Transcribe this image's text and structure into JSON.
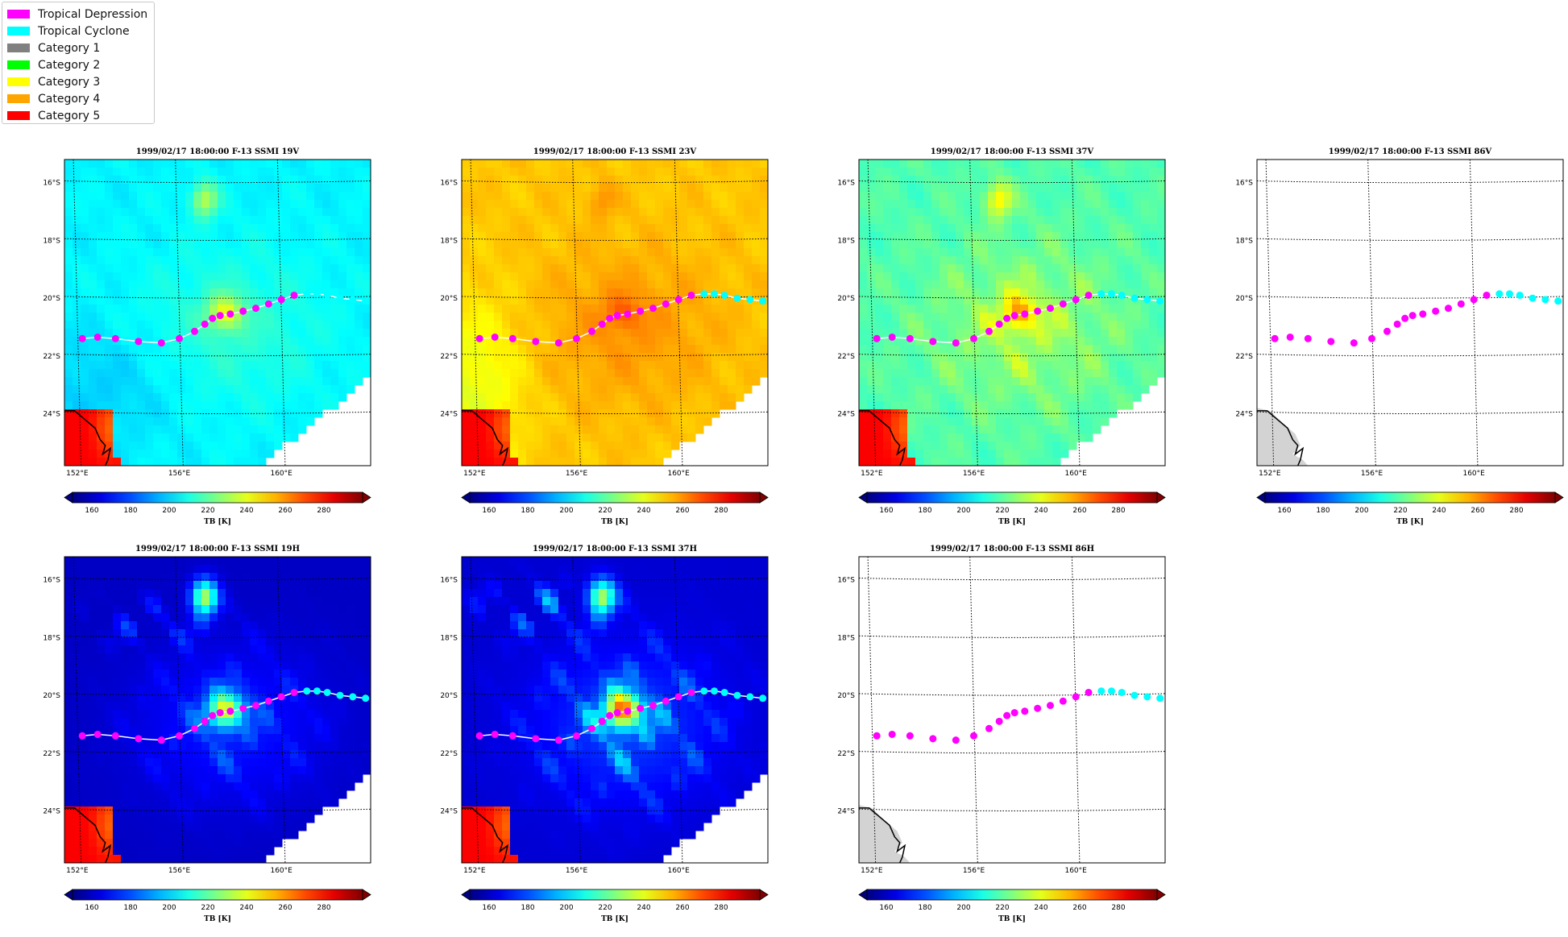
{
  "legend": {
    "items": [
      {
        "label": "Tropical Depression",
        "color": "#ff00ff"
      },
      {
        "label": "Tropical Cyclone",
        "color": "#00ffff"
      },
      {
        "label": "Category 1",
        "color": "#808080"
      },
      {
        "label": "Category 2",
        "color": "#00ff00"
      },
      {
        "label": "Category 3",
        "color": "#ffff00"
      },
      {
        "label": "Category 4",
        "color": "#ffa500"
      },
      {
        "label": "Category 5",
        "color": "#ff0000"
      }
    ]
  },
  "chart_data": [
    {
      "type": "heatmap",
      "title": "1999/02/17 18:00:00  F-13 SSMI 19V",
      "variant": "v19",
      "colorbar_label": "TB [K]"
    },
    {
      "type": "heatmap",
      "title": "1999/02/17 18:00:00  F-13 SSMI 23V",
      "variant": "v23",
      "colorbar_label": "TB [K]"
    },
    {
      "type": "heatmap",
      "title": "1999/02/17 18:00:00  F-13 SSMI 37V",
      "variant": "v37",
      "colorbar_label": "TB [K]"
    },
    {
      "type": "heatmap",
      "title": "1999/02/17 18:00:00  F-13 SSMI 86V",
      "variant": "blank",
      "colorbar_label": "TB [K]"
    },
    {
      "type": "heatmap",
      "title": "1999/02/17 18:00:00  F-13 SSMI 19H",
      "variant": "h19",
      "colorbar_label": "TB [K]"
    },
    {
      "type": "heatmap",
      "title": "1999/02/17 18:00:00  F-13 SSMI 37H",
      "variant": "h37",
      "colorbar_label": "TB [K]"
    },
    {
      "type": "heatmap",
      "title": "1999/02/17 18:00:00  F-13 SSMI 86H",
      "variant": "blank",
      "colorbar_label": "TB [K]"
    }
  ],
  "map": {
    "lat_ticks": [
      "16°S",
      "18°S",
      "20°S",
      "22°S",
      "24°S"
    ],
    "lat_values": [
      -16,
      -18,
      -20,
      -22,
      -24
    ],
    "lon_ticks": [
      "152°E",
      "156°E",
      "160°E"
    ],
    "lon_values": [
      152,
      156,
      160
    ],
    "lon_range": [
      151.5,
      163.5
    ],
    "lat_range": [
      -25.8,
      -15.2
    ],
    "colorbar_ticks": [
      "160",
      "180",
      "200",
      "220",
      "240",
      "260",
      "280"
    ],
    "colorbar_range": [
      150,
      300
    ],
    "track": [
      {
        "lon": 152.2,
        "lat": -21.4,
        "cat": "td"
      },
      {
        "lon": 152.8,
        "lat": -21.35,
        "cat": "td"
      },
      {
        "lon": 153.5,
        "lat": -21.4,
        "cat": "td"
      },
      {
        "lon": 154.4,
        "lat": -21.5,
        "cat": "td"
      },
      {
        "lon": 155.3,
        "lat": -21.55,
        "cat": "td"
      },
      {
        "lon": 156.0,
        "lat": -21.4,
        "cat": "td"
      },
      {
        "lon": 156.6,
        "lat": -21.15,
        "cat": "td"
      },
      {
        "lon": 157.0,
        "lat": -20.9,
        "cat": "td"
      },
      {
        "lon": 157.3,
        "lat": -20.7,
        "cat": "td"
      },
      {
        "lon": 157.6,
        "lat": -20.6,
        "cat": "td"
      },
      {
        "lon": 158.0,
        "lat": -20.55,
        "cat": "td"
      },
      {
        "lon": 158.5,
        "lat": -20.45,
        "cat": "td"
      },
      {
        "lon": 159.0,
        "lat": -20.35,
        "cat": "td"
      },
      {
        "lon": 159.5,
        "lat": -20.2,
        "cat": "td"
      },
      {
        "lon": 160.0,
        "lat": -20.05,
        "cat": "td"
      },
      {
        "lon": 160.5,
        "lat": -19.9,
        "cat": "td"
      },
      {
        "lon": 161.0,
        "lat": -19.85,
        "cat": "tc"
      },
      {
        "lon": 161.4,
        "lat": -19.85,
        "cat": "tc"
      },
      {
        "lon": 161.8,
        "lat": -19.9,
        "cat": "tc"
      },
      {
        "lon": 162.3,
        "lat": -20.0,
        "cat": "tc"
      },
      {
        "lon": 162.8,
        "lat": -20.05,
        "cat": "tc"
      },
      {
        "lon": 163.3,
        "lat": -20.1,
        "cat": "tc"
      }
    ]
  }
}
